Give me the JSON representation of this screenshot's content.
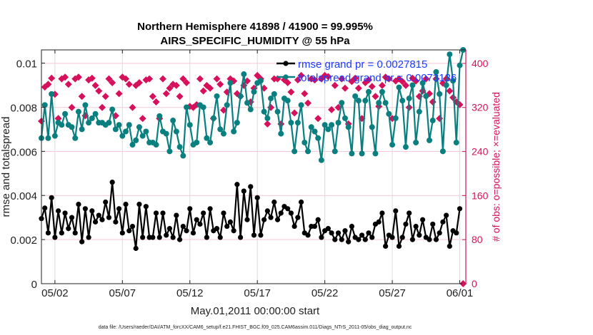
{
  "chart_data": {
    "type": "line",
    "title_line1": "Northern Hemisphere 41898 / 41900 = 99.995%",
    "title_line2": "AIRS_SPECIFIC_HUMIDITY @ 55 hPa",
    "xlabel": "May.01,2011 00:00:00 start",
    "ylabel_left": "rmse and totalspread",
    "ylabel_right": "# of obs: o=possible; ×=evaluated",
    "footer": "data file: /Users/raeder/DAI/ATM_forcXX/CAM6_setup/f.e21.FHIST_BGC.f09_025.CAM6assim.011/Diags_NTrS_2011-05/obs_diag_output.nc",
    "x_start_day": 0,
    "x_step_days": 0.25,
    "xlim_days": [
      0,
      31.45
    ],
    "x_ticks": [
      {
        "day": 1,
        "label": "05/02"
      },
      {
        "day": 6,
        "label": "05/07"
      },
      {
        "day": 11,
        "label": "05/12"
      },
      {
        "day": 16,
        "label": "05/17"
      },
      {
        "day": 21,
        "label": "05/22"
      },
      {
        "day": 26,
        "label": "05/27"
      },
      {
        "day": 31,
        "label": "06/01"
      }
    ],
    "ylim_left": [
      0,
      0.0106
    ],
    "y_ticks_left": [
      {
        "v": 0,
        "label": "0"
      },
      {
        "v": 0.002,
        "label": "0.002"
      },
      {
        "v": 0.004,
        "label": "0.004"
      },
      {
        "v": 0.006,
        "label": "0.006"
      },
      {
        "v": 0.008,
        "label": "0.008"
      },
      {
        "v": 0.01,
        "label": "0.01"
      }
    ],
    "ylim_right": [
      0,
      424.5
    ],
    "y_ticks_right": [
      {
        "v": 0,
        "label": "0"
      },
      {
        "v": 80,
        "label": "80"
      },
      {
        "v": 160,
        "label": "160"
      },
      {
        "v": 240,
        "label": "240"
      },
      {
        "v": 320,
        "label": "320"
      },
      {
        "v": 400,
        "label": "400"
      }
    ],
    "grid": true,
    "legend_position": "top-right",
    "legend": [
      {
        "label": "rmse grand pr = 0.0027815",
        "color": "#000000"
      },
      {
        "label": "totalspread grand pr = 0.0073136",
        "color": "#0a7f7f"
      }
    ],
    "colors": {
      "rmse": "#000000",
      "totalspread": "#0a7f7f",
      "obs": "#d6105a",
      "legend_text": "#1a3cff",
      "grid": "#f6c8d8"
    },
    "series": [
      {
        "name": "rmse",
        "axis": "left",
        "values": [
          0.00295,
          0.00343,
          0.0023,
          0.0039,
          0.0021,
          0.0033,
          0.0023,
          0.0032,
          0.0025,
          0.003,
          0.0023,
          0.0036,
          0.0019,
          0.0034,
          0.0021,
          0.0033,
          0.0028,
          0.0031,
          0.0029,
          0.0037,
          0.003,
          0.0046,
          0.0028,
          0.0034,
          0.0023,
          0.0036,
          0.0024,
          0.0026,
          0.0016,
          0.0036,
          0.0021,
          0.0035,
          0.0021,
          0.0021,
          0.0032,
          0.0021,
          0.0032,
          0.0022,
          0.0025,
          0.0021,
          0.0031,
          0.002,
          0.0026,
          0.0024,
          0.0034,
          0.0023,
          0.0029,
          0.0027,
          0.0032,
          0.0021,
          0.0034,
          0.0024,
          0.0025,
          0.0021,
          0.0032,
          0.0026,
          0.0028,
          0.0024,
          0.0045,
          0.0021,
          0.0042,
          0.0029,
          0.0044,
          0.0022,
          0.0039,
          0.0022,
          0.0029,
          0.0033,
          0.003,
          0.0037,
          0.0029,
          0.0032,
          0.0035,
          0.0034,
          0.0032,
          0.0026,
          0.003,
          0.0037,
          0.0023,
          0.0022,
          0.0026,
          0.0026,
          0.0029,
          0.0021,
          0.0024,
          0.0025,
          0.0023,
          0.002,
          0.0023,
          0.002,
          0.0024,
          0.0019,
          0.0026,
          0.0021,
          0.002,
          0.0022,
          0.002,
          0.0023,
          0.0021,
          0.0027,
          0.0028,
          0.0032,
          0.0017,
          0.0022,
          0.0021,
          0.0033,
          0.0017,
          0.0021,
          0.0027,
          0.0032,
          0.002,
          0.0026,
          0.0022,
          0.0029,
          0.0021,
          0.002,
          0.0027,
          0.002,
          0.0023,
          0.0028,
          0.0031,
          0.0017,
          0.0024,
          0.0023,
          0.0034
        ]
      },
      {
        "name": "totalspread",
        "axis": "left",
        "values": [
          0.0066,
          0.0081,
          0.0066,
          0.0086,
          0.0067,
          0.0073,
          0.0072,
          0.0077,
          0.0072,
          0.0071,
          0.0066,
          0.0078,
          0.007,
          0.0081,
          0.0073,
          0.0075,
          0.0077,
          0.0073,
          0.0073,
          0.0072,
          0.0073,
          0.0079,
          0.007,
          0.0072,
          0.0067,
          0.0069,
          0.0072,
          0.0063,
          0.0065,
          0.0071,
          0.0067,
          0.0069,
          0.0064,
          0.0064,
          0.0063,
          0.0076,
          0.0069,
          0.0068,
          0.006,
          0.0074,
          0.0069,
          0.0062,
          0.0058,
          0.008,
          0.0072,
          0.0063,
          0.0064,
          0.0081,
          0.008,
          0.0066,
          0.0064,
          0.0075,
          0.0085,
          0.007,
          0.0068,
          0.0081,
          0.0091,
          0.0069,
          0.0073,
          0.0085,
          0.0095,
          0.0082,
          0.0079,
          0.0087,
          0.0091,
          0.0092,
          0.0078,
          0.0075,
          0.0084,
          0.0086,
          0.0078,
          0.0068,
          0.0084,
          0.0083,
          0.0073,
          0.006,
          0.0073,
          0.0081,
          0.0064,
          0.006,
          0.0071,
          0.0069,
          0.0066,
          0.0056,
          0.0072,
          0.007,
          0.0072,
          0.006,
          0.0073,
          0.0082,
          0.0075,
          0.0071,
          0.0059,
          0.0085,
          0.0083,
          0.0059,
          0.0083,
          0.0087,
          0.0071,
          0.0059,
          0.0082,
          0.0087,
          0.0082,
          0.0077,
          0.0063,
          0.0075,
          0.0089,
          0.0083,
          0.0062,
          0.0084,
          0.009,
          0.0064,
          0.0078,
          0.0091,
          0.0085,
          0.0065,
          0.0074,
          0.0096,
          0.0086,
          0.006,
          0.009,
          0.0104,
          0.0092,
          0.0064,
          0.0099,
          0.0106
        ]
      },
      {
        "name": "obs",
        "axis": "right",
        "values": [
          295,
          357,
          362,
          373,
          344,
          300,
          372,
          375,
          362,
          320,
          372,
          375,
          340,
          305,
          370,
          373,
          360,
          350,
          320,
          340,
          372,
          365,
          305,
          345,
          375,
          372,
          362,
          320,
          360,
          365,
          300,
          370,
          372,
          340,
          330,
          300,
          372,
          345,
          355,
          362,
          360,
          340,
          372,
          365,
          322,
          320,
          325,
          372,
          350,
          360,
          355,
          300,
          372,
          362,
          315,
          348,
          372,
          368,
          345,
          340,
          360,
          368,
          330,
          355,
          378,
          372,
          355,
          290,
          320,
          372,
          372,
          290,
          370,
          365,
          348,
          310,
          370,
          378,
          345,
          328,
          372,
          370,
          300,
          372,
          378,
          376,
          316,
          360,
          320,
          372,
          355,
          290,
          367,
          373,
          355,
          300,
          365,
          370,
          358,
          340,
          322,
          360,
          375,
          372,
          300,
          368,
          372,
          367,
          360,
          320,
          373,
          368,
          340,
          350,
          372,
          345,
          330,
          372,
          300,
          364,
          372,
          350,
          338,
          330,
          325,
          0
        ]
      }
    ]
  }
}
